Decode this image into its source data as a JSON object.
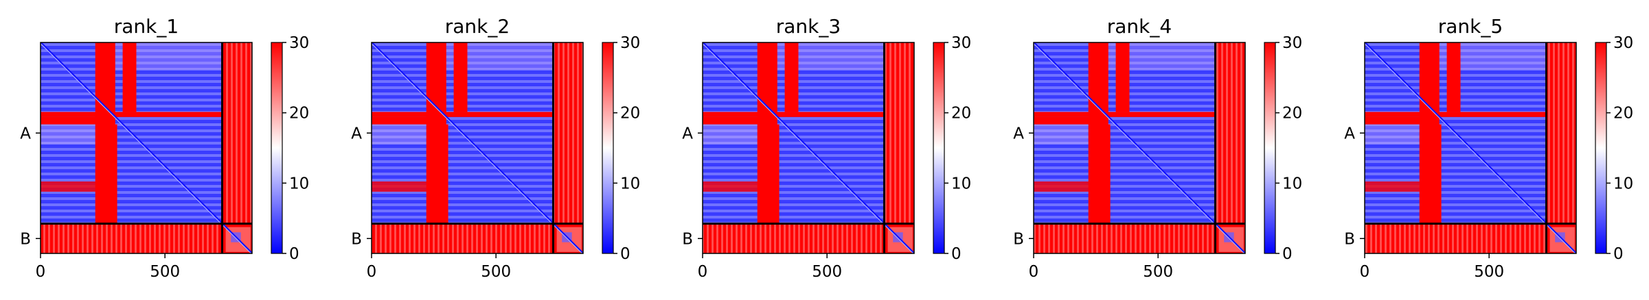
{
  "chart_data": [
    {
      "type": "heatmap",
      "title": "rank_1",
      "x_ticks": [
        0,
        500
      ],
      "y_ticks": [
        "A",
        "B"
      ],
      "chain_boundary": 730,
      "total_length": 850,
      "colorbar": {
        "ticks": [
          0,
          10,
          20,
          30
        ],
        "range": [
          0,
          30
        ],
        "colors": [
          "#0000ff",
          "#ffffff",
          "#ff0000"
        ]
      }
    },
    {
      "type": "heatmap",
      "title": "rank_2",
      "x_ticks": [
        0,
        500
      ],
      "y_ticks": [
        "A",
        "B"
      ],
      "chain_boundary": 730,
      "total_length": 850,
      "colorbar": {
        "ticks": [
          0,
          10,
          20,
          30
        ],
        "range": [
          0,
          30
        ],
        "colors": [
          "#0000ff",
          "#ffffff",
          "#ff0000"
        ]
      }
    },
    {
      "type": "heatmap",
      "title": "rank_3",
      "x_ticks": [
        0,
        500
      ],
      "y_ticks": [
        "A",
        "B"
      ],
      "chain_boundary": 730,
      "total_length": 850,
      "colorbar": {
        "ticks": [
          0,
          10,
          20,
          30
        ],
        "range": [
          0,
          30
        ],
        "colors": [
          "#0000ff",
          "#ffffff",
          "#ff0000"
        ]
      }
    },
    {
      "type": "heatmap",
      "title": "rank_4",
      "x_ticks": [
        0,
        500
      ],
      "y_ticks": [
        "A",
        "B"
      ],
      "chain_boundary": 730,
      "total_length": 850,
      "colorbar": {
        "ticks": [
          0,
          10,
          20,
          30
        ],
        "range": [
          0,
          30
        ],
        "colors": [
          "#0000ff",
          "#ffffff",
          "#ff0000"
        ]
      }
    },
    {
      "type": "heatmap",
      "title": "rank_5",
      "x_ticks": [
        0,
        500
      ],
      "y_ticks": [
        "A",
        "B"
      ],
      "chain_boundary": 730,
      "total_length": 850,
      "colorbar": {
        "ticks": [
          0,
          10,
          20,
          30
        ],
        "range": [
          0,
          30
        ],
        "colors": [
          "#0000ff",
          "#ffffff",
          "#ff0000"
        ]
      }
    }
  ]
}
